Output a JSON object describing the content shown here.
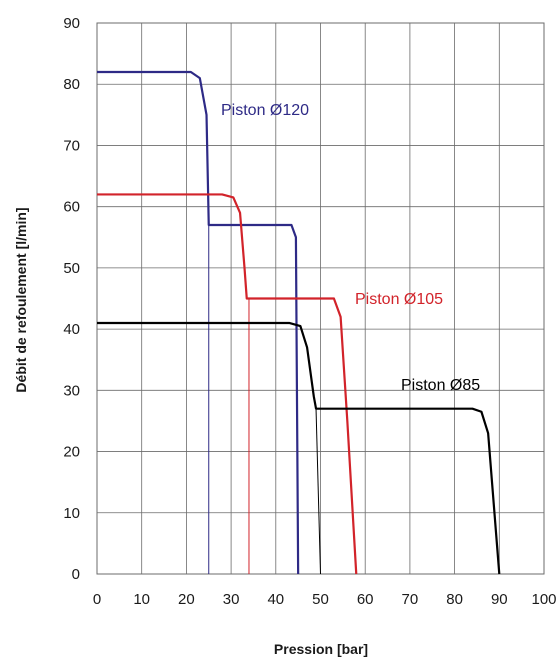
{
  "chart_data": {
    "type": "line",
    "title": "",
    "xlabel": "Pression [bar]",
    "ylabel": "Débit de refoulement [l/min]",
    "xlim": [
      0,
      100
    ],
    "ylim": [
      0,
      90
    ],
    "xticks": [
      0,
      10,
      20,
      30,
      40,
      50,
      60,
      70,
      80,
      90,
      100
    ],
    "yticks": [
      0,
      10,
      20,
      30,
      40,
      50,
      60,
      70,
      80,
      90
    ],
    "grid": true,
    "series": [
      {
        "name": "Piston Ø120",
        "color": "#2e2a86",
        "points": [
          [
            0,
            82
          ],
          [
            21,
            82
          ],
          [
            23,
            81
          ],
          [
            24.5,
            75
          ],
          [
            25,
            57
          ],
          [
            43.5,
            57
          ],
          [
            44.5,
            55
          ],
          [
            45,
            0
          ]
        ],
        "cut_lines": [
          [
            25,
            57
          ],
          [
            25,
            0
          ]
        ]
      },
      {
        "name": "Piston Ø105",
        "color": "#d2232a",
        "points": [
          [
            0,
            62
          ],
          [
            28,
            62
          ],
          [
            30.5,
            61.5
          ],
          [
            32,
            59
          ],
          [
            33,
            50
          ],
          [
            33.5,
            45
          ],
          [
            53,
            45
          ],
          [
            54.5,
            42
          ],
          [
            56,
            25
          ],
          [
            58,
            0
          ]
        ],
        "cut_lines": [
          [
            34,
            45
          ],
          [
            34,
            0
          ]
        ]
      },
      {
        "name": "Piston Ø85",
        "color": "#000000",
        "points": [
          [
            0,
            41
          ],
          [
            43,
            41
          ],
          [
            45.5,
            40.5
          ],
          [
            47,
            37
          ],
          [
            48.5,
            29
          ],
          [
            49,
            27
          ],
          [
            84,
            27
          ],
          [
            86,
            26.5
          ],
          [
            87.5,
            23
          ],
          [
            90,
            0
          ]
        ],
        "cut_lines": [
          [
            49,
            27
          ],
          [
            50,
            0
          ]
        ]
      }
    ]
  },
  "labels": {
    "p120": "Piston Ø120",
    "p105": "Piston Ø105",
    "p85": "Piston Ø85"
  }
}
